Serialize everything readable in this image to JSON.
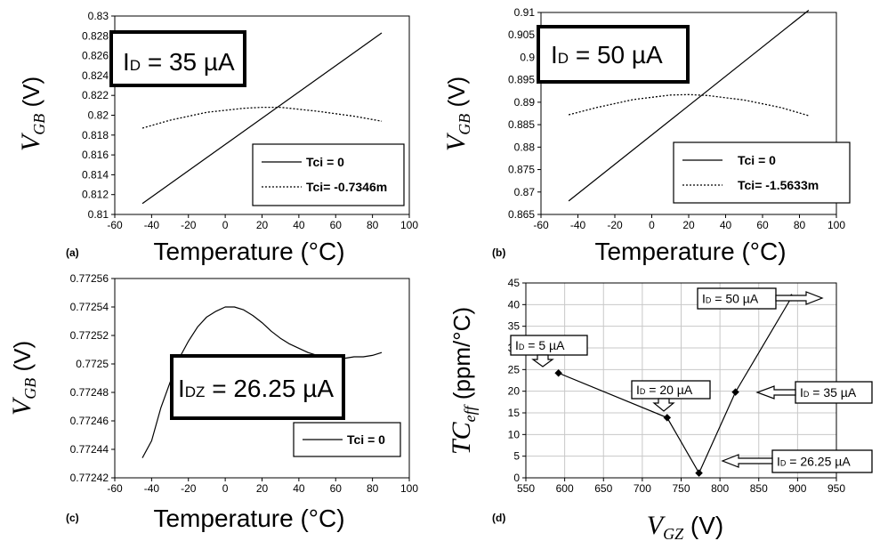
{
  "chart_data": [
    {
      "type": "line",
      "panel_label": "(a)",
      "xlabel": "Temperature (°C)",
      "ylabel": "V",
      "ylabel_sub": "GB",
      "ylabel_unit": "(V)",
      "xlim": [
        -60,
        100
      ],
      "ylim": [
        0.81,
        0.83
      ],
      "xticks": [
        -60,
        -40,
        -20,
        0,
        20,
        40,
        60,
        80,
        100
      ],
      "yticks": [
        0.81,
        0.812,
        0.814,
        0.816,
        0.818,
        0.82,
        0.822,
        0.824,
        0.826,
        0.828,
        0.83
      ],
      "ytick_labels": [
        "0.81",
        "0.812",
        "0.814",
        "0.816",
        "0.818",
        "0.82",
        "0.822",
        "0.824",
        "0.826",
        "0.828",
        "0.83"
      ],
      "annotation": {
        "main": "I",
        "sub": "D",
        "rest": " = 35 µA"
      },
      "legend_position": "bottom-right",
      "series": [
        {
          "name": "Tci = 0",
          "style": "solid",
          "x": [
            -45,
            85
          ],
          "y": [
            0.8111,
            0.8283
          ]
        },
        {
          "name": "Tci= -0.7346m",
          "style": "dotted",
          "x": [
            -45,
            -30,
            -10,
            10,
            20,
            30,
            50,
            70,
            85
          ],
          "y": [
            0.8187,
            0.8195,
            0.8203,
            0.8207,
            0.8208,
            0.8208,
            0.8204,
            0.8199,
            0.8194
          ]
        }
      ]
    },
    {
      "type": "line",
      "panel_label": "(b)",
      "xlabel": "Temperature (°C)",
      "ylabel": "V",
      "ylabel_sub": "GB",
      "ylabel_unit": "(V)",
      "xlim": [
        -60,
        100
      ],
      "ylim": [
        0.865,
        0.91
      ],
      "xticks": [
        -60,
        -40,
        -20,
        0,
        20,
        40,
        60,
        80,
        100
      ],
      "yticks": [
        0.865,
        0.87,
        0.875,
        0.88,
        0.885,
        0.89,
        0.895,
        0.9,
        0.905,
        0.91
      ],
      "ytick_labels": [
        "0.865",
        "0.87",
        "0.875",
        "0.88",
        "0.885",
        "0.89",
        "0.895",
        "0.9",
        "0.905",
        "0.91"
      ],
      "annotation": {
        "main": "I",
        "sub": "D",
        "rest": " = 50 µA"
      },
      "legend_position": "bottom-right",
      "series": [
        {
          "name": "Tci = 0",
          "style": "solid",
          "x": [
            -45,
            85
          ],
          "y": [
            0.868,
            0.9105
          ]
        },
        {
          "name": "Tci= -1.5633m",
          "style": "dotted",
          "x": [
            -45,
            -30,
            -10,
            10,
            20,
            30,
            50,
            70,
            85
          ],
          "y": [
            0.8872,
            0.8888,
            0.8906,
            0.8916,
            0.8917,
            0.8915,
            0.8905,
            0.8888,
            0.887
          ]
        }
      ]
    },
    {
      "type": "line",
      "panel_label": "(c)",
      "xlabel": "Temperature (°C)",
      "ylabel": "V",
      "ylabel_sub": "GB",
      "ylabel_unit": "(V)",
      "xlim": [
        -60,
        100
      ],
      "ylim": [
        0.77242,
        0.77256
      ],
      "xticks": [
        -60,
        -40,
        -20,
        0,
        20,
        40,
        60,
        80,
        100
      ],
      "yticks": [
        0.77242,
        0.77244,
        0.77246,
        0.77248,
        0.7725,
        0.77252,
        0.77254,
        0.77256
      ],
      "ytick_labels": [
        "0.77242",
        "0.77244",
        "0.77246",
        "0.77248",
        "0.7725",
        "0.77252",
        "0.77254",
        "0.77256"
      ],
      "annotation": {
        "main": "I",
        "sub": "DZ",
        "rest": " = 26.25 µA"
      },
      "legend_position": "bottom-right",
      "series": [
        {
          "name": "Tci = 0",
          "style": "solid",
          "x": [
            -45,
            -40,
            -35,
            -30,
            -25,
            -20,
            -15,
            -10,
            -5,
            0,
            5,
            10,
            15,
            20,
            25,
            30,
            35,
            40,
            45,
            50,
            55,
            60,
            65,
            70,
            75,
            80,
            85
          ],
          "y": [
            0.772434,
            0.772446,
            0.772469,
            0.772487,
            0.772504,
            0.772516,
            0.772526,
            0.772533,
            0.772537,
            0.77254,
            0.77254,
            0.772538,
            0.772534,
            0.772529,
            0.772523,
            0.772518,
            0.772514,
            0.772511,
            0.772508,
            0.772506,
            0.772505,
            0.772504,
            0.772504,
            0.772505,
            0.772505,
            0.772506,
            0.772508
          ]
        }
      ]
    },
    {
      "type": "line",
      "panel_label": "(d)",
      "xlabel": "V",
      "xlabel_sub": "GZ",
      "xlabel_unit": "(V)",
      "ylabel": "TC",
      "ylabel_sub": "eff",
      "ylabel_unit": "(ppm/°C)",
      "xlim": [
        550,
        950
      ],
      "ylim": [
        0,
        45
      ],
      "xticks": [
        550,
        600,
        650,
        700,
        750,
        800,
        850,
        900,
        950
      ],
      "yticks": [
        0,
        5,
        10,
        15,
        20,
        25,
        30,
        35,
        40,
        45
      ],
      "ytick_labels": [
        "0",
        "5",
        "10",
        "15",
        "20",
        "25",
        "30",
        "35",
        "40",
        "45"
      ],
      "series": [
        {
          "name": "",
          "style": "solid-marker",
          "x": [
            592,
            732,
            773,
            820,
            892
          ],
          "y": [
            24.2,
            13.9,
            1.1,
            19.8,
            41.6
          ],
          "labels": [
            {
              "main": "I",
              "sub": "D",
              "rest": " = 5 µA"
            },
            {
              "main": "I",
              "sub": "D",
              "rest": " = 20 µA"
            },
            {
              "main": "I",
              "sub": "D",
              "rest": " = 26.25 µA"
            },
            {
              "main": "I",
              "sub": "D",
              "rest": " = 35 µA"
            },
            {
              "main": "I",
              "sub": "D",
              "rest": " = 50 µA"
            }
          ]
        }
      ]
    }
  ]
}
